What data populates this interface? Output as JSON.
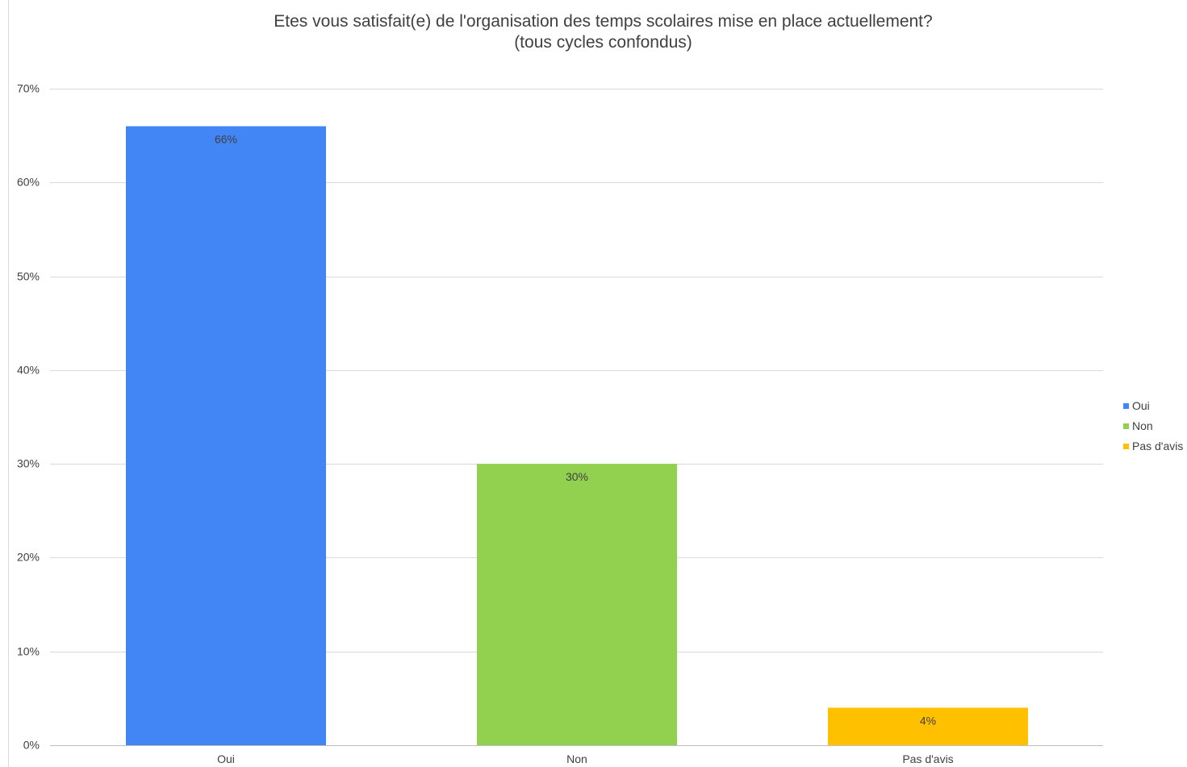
{
  "chart_data": {
    "type": "bar",
    "title": "Etes vous satisfait(e) de l'organisation des temps scolaires mise en place actuellement?",
    "subtitle": "(tous cycles confondus)",
    "xlabel": "",
    "ylabel": "",
    "categories": [
      "Oui",
      "Non",
      "Pas d'avis"
    ],
    "values": [
      66,
      30,
      4
    ],
    "data_labels": [
      "66%",
      "30%",
      "4%"
    ],
    "colors": [
      "#4285f4",
      "#92d050",
      "#ffc000"
    ],
    "ylim": [
      0,
      70
    ],
    "yticks": [
      0,
      10,
      20,
      30,
      40,
      50,
      60,
      70
    ],
    "ytick_labels": [
      "0%",
      "10%",
      "20%",
      "30%",
      "40%",
      "50%",
      "60%",
      "70%"
    ],
    "grid": true,
    "legend": {
      "placement": "right",
      "entries": [
        {
          "label": "Oui",
          "color": "#4285f4"
        },
        {
          "label": "Non",
          "color": "#92d050"
        },
        {
          "label": "Pas d'avis",
          "color": "#ffc000"
        }
      ]
    }
  }
}
